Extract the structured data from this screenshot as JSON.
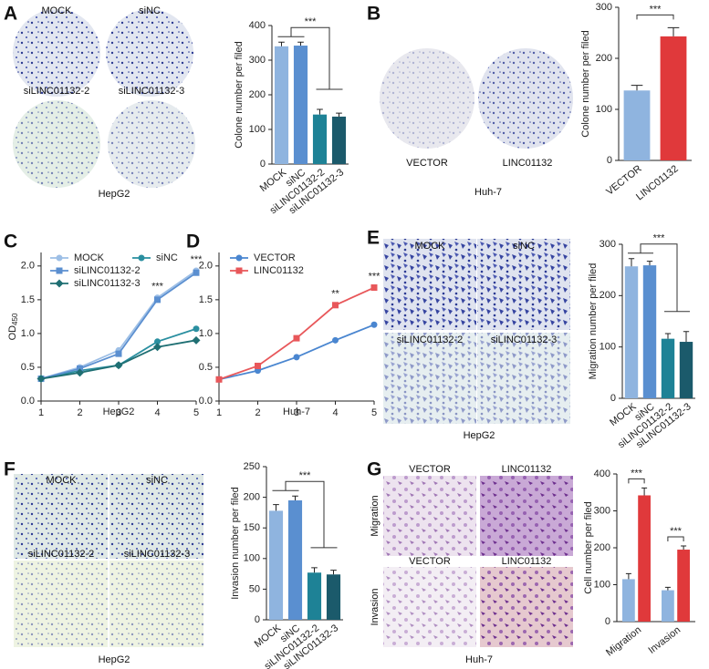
{
  "panel_letters": [
    "A",
    "B",
    "C",
    "D",
    "E",
    "F",
    "G"
  ],
  "image_panels": [
    {
      "labels": [
        "MOCK",
        "siNC",
        "siLINC01132-2",
        "siLINC01132-3"
      ],
      "caption": "HepG2"
    },
    {
      "labels": [
        "VECTOR",
        "LINC01132"
      ],
      "caption": "Huh-7"
    },
    {
      "labels": [
        "MOCK",
        "siNC",
        "siLINC01132-2",
        "siLINC01132-3"
      ],
      "caption": "HepG2"
    },
    {
      "labels": [
        "MOCK",
        "siNC",
        "siLINC01132-2",
        "siLINC01132-3"
      ],
      "caption": "HepG2"
    },
    {
      "labels": [
        "VECTOR",
        "LINC01132",
        "VECTOR",
        "LINC01132"
      ],
      "row_labels": [
        "Migration",
        "Invasion"
      ],
      "caption": "Huh-7"
    }
  ],
  "chart_data": [
    {
      "type": "bar",
      "y_label": "Colone number per filed",
      "categories": [
        "MOCK",
        "siNC",
        "siLINC01132-2",
        "siLINC01132-3"
      ],
      "values": [
        340,
        342,
        143,
        137
      ],
      "errors": [
        12,
        10,
        15,
        10
      ],
      "colors": [
        "#8fb4df",
        "#5a8fd0",
        "#1e8296",
        "#1b5a6b"
      ],
      "ylim": [
        0,
        400
      ],
      "yticks": [
        0,
        100,
        200,
        300,
        400
      ],
      "annotations": [
        {
          "text": "***"
        }
      ]
    },
    {
      "type": "bar",
      "y_label": "Colone number per filed",
      "categories": [
        "VECTOR",
        "LINC01132"
      ],
      "values": [
        137,
        243
      ],
      "errors": [
        10,
        17
      ],
      "colors": [
        "#8fb4df",
        "#e0393b"
      ],
      "ylim": [
        0,
        300
      ],
      "yticks": [
        0,
        100,
        200,
        300
      ],
      "annotations": [
        {
          "text": "***"
        }
      ]
    },
    {
      "type": "line",
      "x_label": "HepG2",
      "y_label": "OD",
      "y_label_sub": "450",
      "x": [
        1,
        2,
        3,
        4,
        5
      ],
      "xlim": [
        1,
        5
      ],
      "xticks": [
        1,
        2,
        3,
        4,
        5
      ],
      "ylim": [
        0,
        2.2
      ],
      "yticks": [
        {
          "value": 0,
          "label": "0.0"
        },
        0.5,
        {
          "value": 1,
          "label": "1.0"
        },
        1.5,
        {
          "value": 2,
          "label": "2.0"
        }
      ],
      "series": [
        {
          "name": "MOCK",
          "color": "#9dbfe6",
          "marker": "circle",
          "values": [
            0.33,
            0.5,
            0.75,
            1.53,
            1.93
          ]
        },
        {
          "name": "siNC",
          "color": "#2a8fa0",
          "marker": "circle",
          "values": [
            0.33,
            0.45,
            0.53,
            0.88,
            1.07
          ]
        },
        {
          "name": "siLINC01132-2",
          "color": "#5b8fd0",
          "marker": "square",
          "values": [
            0.33,
            0.48,
            0.7,
            1.5,
            1.9
          ]
        },
        {
          "name": "siLINC01132-3",
          "color": "#1f6f73",
          "marker": "diamond",
          "values": [
            0.33,
            0.42,
            0.53,
            0.8,
            0.9
          ]
        }
      ],
      "annotations": [
        {
          "x": 4,
          "text": "***"
        },
        {
          "x": 5,
          "text": "***"
        }
      ]
    },
    {
      "type": "line",
      "x_label": "Huh-7",
      "x": [
        1,
        2,
        3,
        4,
        5
      ],
      "xlim": [
        1,
        5
      ],
      "xticks": [
        1,
        2,
        3,
        4,
        5
      ],
      "ylim": [
        0,
        2.2
      ],
      "yticks": [
        {
          "value": 0,
          "label": "0.0"
        },
        0.5,
        {
          "value": 1,
          "label": "1.0"
        },
        1.5,
        {
          "value": 2,
          "label": "2.0"
        }
      ],
      "series": [
        {
          "name": "VECTOR",
          "color": "#4a86d0",
          "marker": "circle",
          "values": [
            0.32,
            0.45,
            0.65,
            0.9,
            1.13
          ]
        },
        {
          "name": "LINC01132",
          "color": "#e8575a",
          "marker": "square",
          "values": [
            0.32,
            0.52,
            0.93,
            1.42,
            1.68
          ]
        }
      ],
      "annotations": [
        {
          "x": 4,
          "text": "**"
        },
        {
          "x": 5,
          "text": "***"
        }
      ]
    },
    {
      "type": "bar",
      "y_label": "Migration number per filed",
      "categories": [
        "MOCK",
        "siNC",
        "siLINC01132-2",
        "siLINC01132-3"
      ],
      "values": [
        257,
        259,
        116,
        110
      ],
      "errors": [
        15,
        8,
        10,
        20
      ],
      "colors": [
        "#8fb4df",
        "#5a8fd0",
        "#1e8296",
        "#1b5a6b"
      ],
      "ylim": [
        0,
        300
      ],
      "yticks": [
        0,
        100,
        200,
        300
      ],
      "annotations": [
        {
          "text": "***"
        }
      ]
    },
    {
      "type": "bar",
      "y_label": "Invasion number per filed",
      "categories": [
        "MOCK",
        "siNC",
        "siLINC01132-2",
        "siLINC01132-3"
      ],
      "values": [
        178,
        195,
        77,
        74
      ],
      "errors": [
        10,
        7,
        8,
        7
      ],
      "colors": [
        "#8fb4df",
        "#5a8fd0",
        "#1e8296",
        "#1b5a6b"
      ],
      "ylim": [
        0,
        250
      ],
      "yticks": [
        0,
        50,
        100,
        150,
        200,
        250
      ],
      "annotations": [
        {
          "text": "***"
        }
      ]
    },
    {
      "type": "bar",
      "y_label": "Cell number per filed",
      "categories": [
        "Migration",
        "Invasion"
      ],
      "series": [
        {
          "color": "#8fb4df",
          "values": [
            115,
            85
          ],
          "errors": [
            15,
            8
          ]
        },
        {
          "color": "#e0393b",
          "values": [
            342,
            195
          ],
          "errors": [
            20,
            10
          ]
        }
      ],
      "ylim": [
        0,
        400
      ],
      "yticks": [
        0,
        100,
        200,
        300,
        400
      ],
      "annotations": [
        {
          "text": "***"
        },
        {
          "text": "***"
        }
      ]
    }
  ]
}
